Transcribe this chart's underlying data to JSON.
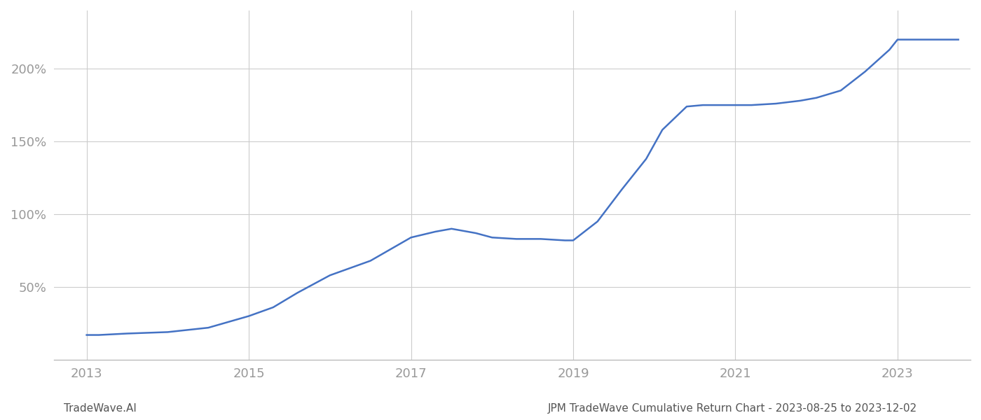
{
  "title_left": "TradeWave.AI",
  "title_right": "JPM TradeWave Cumulative Return Chart - 2023-08-25 to 2023-12-02",
  "line_color": "#4472c4",
  "line_width": 1.8,
  "background_color": "#ffffff",
  "grid_color": "#cccccc",
  "x_values": [
    2013.0,
    2013.15,
    2013.5,
    2014.0,
    2014.5,
    2015.0,
    2015.3,
    2015.6,
    2016.0,
    2016.5,
    2017.0,
    2017.3,
    2017.5,
    2017.8,
    2018.0,
    2018.3,
    2018.6,
    2018.9,
    2019.0,
    2019.3,
    2019.6,
    2019.9,
    2020.1,
    2020.4,
    2020.6,
    2021.0,
    2021.2,
    2021.5,
    2021.8,
    2022.0,
    2022.3,
    2022.6,
    2022.9,
    2023.0,
    2023.75
  ],
  "y_values": [
    17,
    17,
    18,
    19,
    22,
    30,
    36,
    46,
    58,
    68,
    84,
    88,
    90,
    87,
    84,
    83,
    83,
    82,
    82,
    95,
    117,
    138,
    158,
    174,
    175,
    175,
    175,
    176,
    178,
    180,
    185,
    198,
    213,
    220,
    220
  ],
  "yticks": [
    50,
    100,
    150,
    200
  ],
  "ytick_labels": [
    "50%",
    "100%",
    "150%",
    "200%"
  ],
  "xticks": [
    2013,
    2015,
    2017,
    2019,
    2021,
    2023
  ],
  "xtick_labels": [
    "2013",
    "2015",
    "2017",
    "2019",
    "2021",
    "2023"
  ],
  "xlim": [
    2012.6,
    2023.9
  ],
  "ylim": [
    0,
    240
  ],
  "tick_color": "#999999",
  "tick_fontsize": 13,
  "footer_fontsize": 11,
  "footer_color": "#555555"
}
